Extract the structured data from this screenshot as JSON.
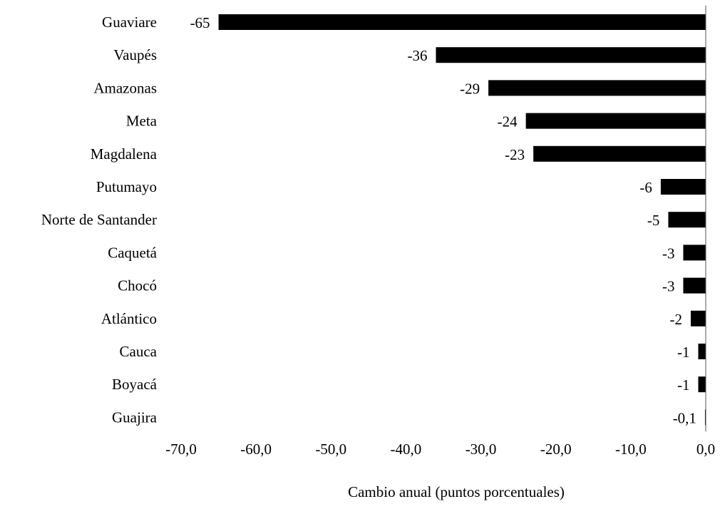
{
  "chart_data": {
    "type": "bar",
    "orientation": "horizontal",
    "title": "",
    "xlabel": "Cambio anual (puntos porcentuales)",
    "ylabel": "",
    "xlim": [
      -70,
      0
    ],
    "x_ticks": [
      -70,
      -60,
      -50,
      -40,
      -30,
      -20,
      -10,
      0
    ],
    "x_tick_labels": [
      "-70,0",
      "-60,0",
      "-50,0",
      "-40,0",
      "-30,0",
      "-20,0",
      "-10,0",
      "0,0"
    ],
    "grid": false,
    "legend": "none",
    "bar_color": "#000000",
    "categories": [
      "Guaviare",
      "Vaupés",
      "Amazonas",
      "Meta",
      "Magdalena",
      "Putumayo",
      "Norte de Santander",
      "Caquetá",
      "Chocó",
      "Atlántico",
      "Cauca",
      "Boyacá",
      "Guajira"
    ],
    "values": [
      -65,
      -36,
      -29,
      -24,
      -23,
      -6,
      -5,
      -3,
      -3,
      -2,
      -1,
      -1,
      -0.1
    ],
    "data_labels": [
      "-65",
      "-36",
      "-29",
      "-24",
      "-23",
      "-6",
      "-5",
      "-3",
      "-3",
      "-2",
      "-1",
      "-1",
      "-0,1"
    ]
  }
}
